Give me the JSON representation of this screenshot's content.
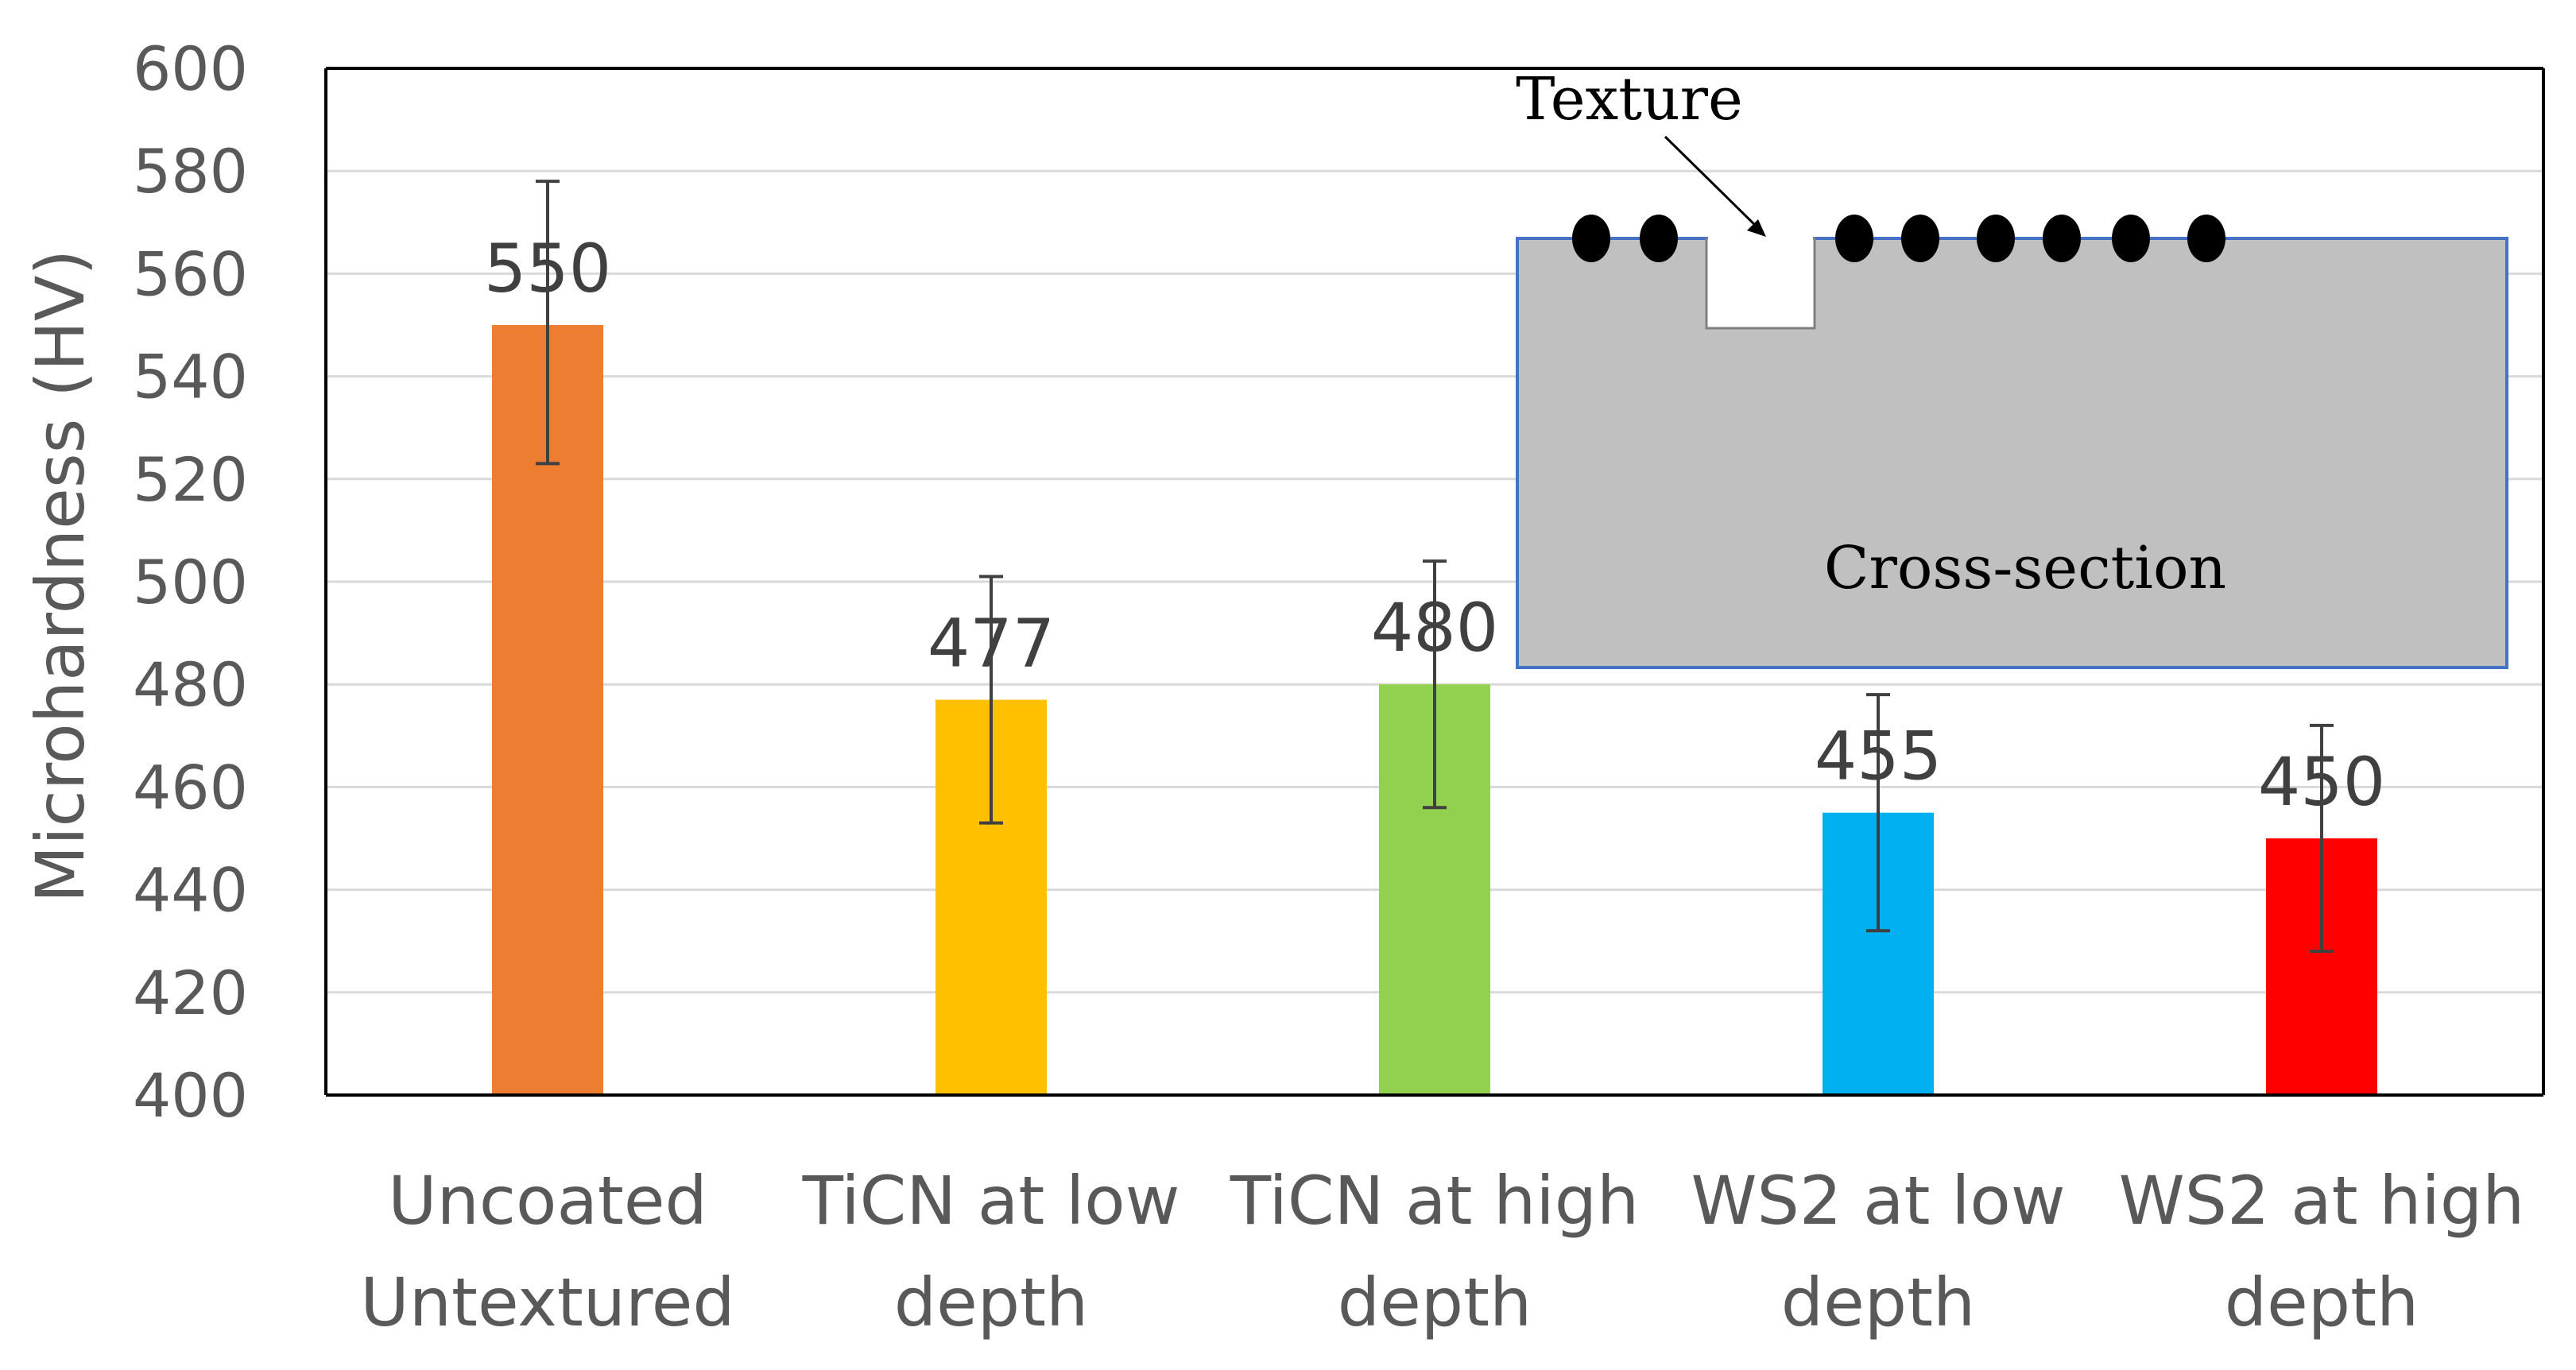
{
  "chart_data": {
    "type": "bar",
    "title": "",
    "xlabel": "",
    "ylabel": "Microhardness (HV)",
    "ylim": [
      400,
      600
    ],
    "ytick_step": 20,
    "yticks": [
      "400",
      "420",
      "440",
      "460",
      "480",
      "500",
      "520",
      "540",
      "560",
      "580",
      "600"
    ],
    "grid": true,
    "categories": [
      [
        "Uncoated",
        "Untextured"
      ],
      [
        "TiCN at low",
        "depth"
      ],
      [
        "TiCN at high",
        "depth"
      ],
      [
        "WS2 at low",
        "depth"
      ],
      [
        "WS2 at high",
        "depth"
      ]
    ],
    "values": [
      550,
      477,
      480,
      455,
      450
    ],
    "value_labels": [
      "550",
      "477",
      "480",
      "455",
      "450"
    ],
    "error_high": [
      578,
      501,
      504,
      478,
      472
    ],
    "error_low": [
      523,
      453,
      456,
      432,
      428
    ],
    "bar_colors": [
      "#ED7D31",
      "#FFC000",
      "#92D050",
      "#00B0F0",
      "#FF0000"
    ],
    "annotations": [
      "Texture",
      "Cross-section"
    ]
  },
  "inset": {
    "texture_label": "Texture",
    "section_label": "Cross-section",
    "fill_color": "#C0C0C0",
    "border_color": "#4472C4"
  }
}
